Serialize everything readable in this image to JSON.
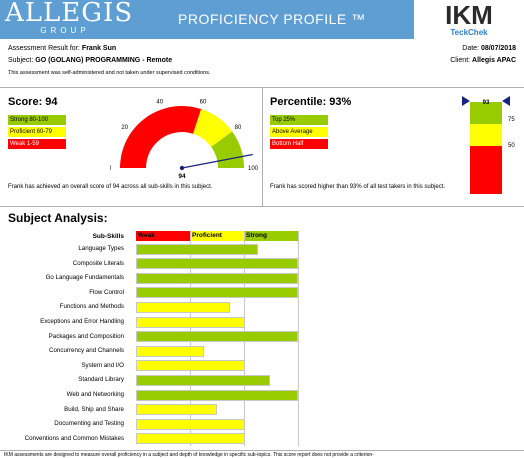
{
  "header": {
    "logo_main": "ALLEGIS",
    "logo_sub": "GROUP",
    "title": "PROFICIENCY PROFILE ™",
    "ikm_logo": "IKM",
    "ikm_sub": "TeckChek"
  },
  "info": {
    "result_label": "Assessment Result for:",
    "candidate": "Frank Sun",
    "subject_label": "Subject:",
    "subject": "GO (GOLANG) PROGRAMMING - Remote",
    "note": "This assessment was self-administered and not taken under supervised conditions.",
    "date_label": "Date:",
    "date": "08/07/2018",
    "client_label": "Client:",
    "client": "Allegis APAC"
  },
  "score": {
    "title": "Score: 94",
    "value": 94,
    "legend": [
      {
        "label": "Strong 80-100",
        "color": "#99cc00"
      },
      {
        "label": "Proficient 60-79",
        "color": "#ffff00"
      },
      {
        "label": "Weak 1-59",
        "color": "#ff0000"
      }
    ],
    "ticks": [
      "0",
      "20",
      "40",
      "60",
      "80",
      "100"
    ],
    "gauge_value_label": "94",
    "summary": "Frank has achieved an overall score of 94 across all sub-skills in this subject."
  },
  "percentile": {
    "title": "Percentile: 93%",
    "value": 93,
    "legend": [
      {
        "label": "Top 25%",
        "color": "#99cc00"
      },
      {
        "label": "Above Average",
        "color": "#ffff00"
      },
      {
        "label": "Bottom Half",
        "color": "#ff0000"
      }
    ],
    "ticks": [
      "75",
      "50"
    ],
    "marker_label": "93",
    "summary": "Frank has scored higher than 93% of all test takers in this subject."
  },
  "analysis": {
    "title": "Subject Analysis:",
    "col_subskills": "Sub-Skills",
    "col_weak": "Weak",
    "col_proficient": "Proficient",
    "col_strong": "Strong",
    "colors": {
      "weak": "#ff0000",
      "proficient": "#ffff00",
      "strong": "#99cc00"
    }
  },
  "chart_data": {
    "type": "bar",
    "categories": [
      "Language Types",
      "Composite Literals",
      "Go Language Fundamentals",
      "Flow Control",
      "Functions and Methods",
      "Exceptions and Error Handling",
      "Packages and Composition",
      "Concurrency and Channels",
      "System and I/O",
      "Standard Library",
      "Web and Networking",
      "Build, Ship and Share",
      "Documenting and Testing",
      "Conventions and Common Mistakes"
    ],
    "values": [
      75,
      100,
      100,
      100,
      58,
      67,
      100,
      42,
      67,
      83,
      100,
      50,
      67,
      67
    ],
    "levels": [
      "strong",
      "strong",
      "strong",
      "strong",
      "proficient",
      "proficient",
      "strong",
      "proficient",
      "proficient",
      "strong",
      "strong",
      "proficient",
      "proficient",
      "proficient"
    ],
    "xlim": [
      0,
      100
    ]
  },
  "footer": {
    "text": "IKM assessments are designed to measure overall proficiency in a subject and depth of knowledge in specific sub-topics. This score report does not provide a criterion-"
  }
}
